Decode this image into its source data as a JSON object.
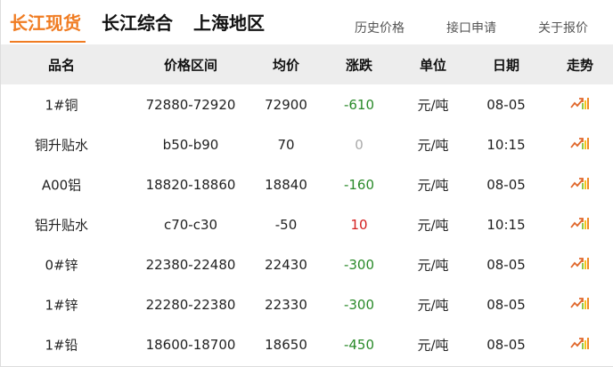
{
  "tabs": [
    {
      "label": "长江现货",
      "active": true
    },
    {
      "label": "长江综合"
    },
    {
      "label": "上海地区"
    }
  ],
  "links": [
    "历史价格",
    "接口申请",
    "关于报价"
  ],
  "columns": [
    "品名",
    "价格区间",
    "均价",
    "涨跌",
    "单位",
    "日期",
    "走势"
  ],
  "colors": {
    "accent": "#f07c22",
    "down": "#2a8a2a",
    "up": "#d42020",
    "flat": "#aaaaaa"
  },
  "rows": [
    {
      "name": "1#铜",
      "range": "72880-72920",
      "avg": "72900",
      "change": "-610",
      "dir": "down",
      "unit": "元/吨",
      "date": "08-05",
      "trend": "trend-chart-icon"
    },
    {
      "name": "铜升贴水",
      "range": "b50-b90",
      "avg": "70",
      "change": "0",
      "dir": "flat",
      "unit": "元/吨",
      "date": "10:15",
      "trend": "trend-chart-icon"
    },
    {
      "name": "A00铝",
      "range": "18820-18860",
      "avg": "18840",
      "change": "-160",
      "dir": "down",
      "unit": "元/吨",
      "date": "08-05",
      "trend": "trend-chart-icon"
    },
    {
      "name": "铝升贴水",
      "range": "c70-c30",
      "avg": "-50",
      "change": "10",
      "dir": "up",
      "unit": "元/吨",
      "date": "10:15",
      "trend": "trend-chart-icon"
    },
    {
      "name": "0#锌",
      "range": "22380-22480",
      "avg": "22430",
      "change": "-300",
      "dir": "down",
      "unit": "元/吨",
      "date": "08-05",
      "trend": "trend-chart-icon"
    },
    {
      "name": "1#锌",
      "range": "22280-22380",
      "avg": "22330",
      "change": "-300",
      "dir": "down",
      "unit": "元/吨",
      "date": "08-05",
      "trend": "trend-chart-icon"
    },
    {
      "name": "1#铅",
      "range": "18600-18700",
      "avg": "18650",
      "change": "-450",
      "dir": "down",
      "unit": "元/吨",
      "date": "08-05",
      "trend": "trend-chart-icon"
    }
  ]
}
